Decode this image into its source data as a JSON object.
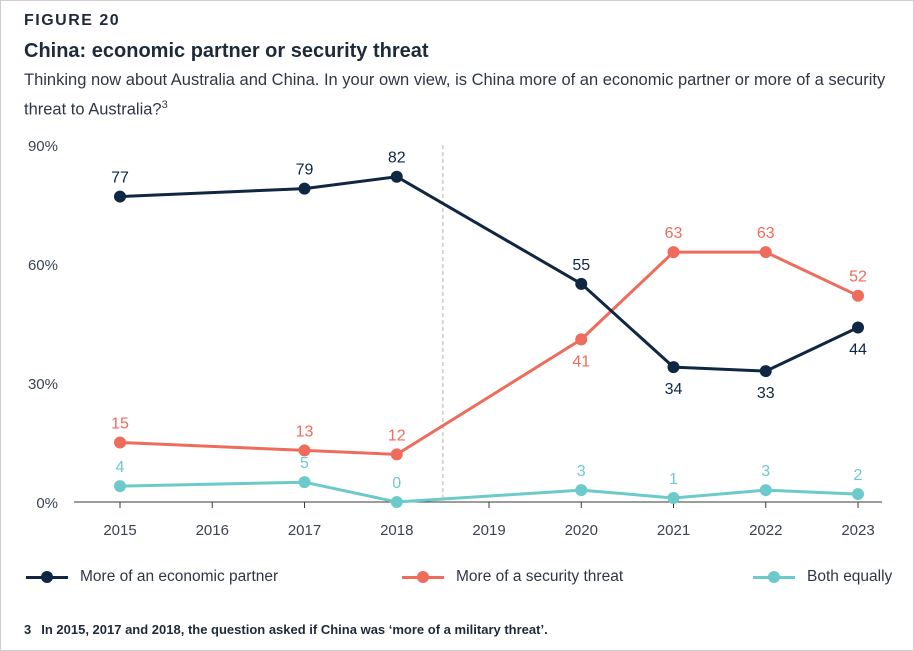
{
  "figure_label": "FIGURE 20",
  "title": "China: economic partner or security threat",
  "subtitle": "Thinking now about Australia and China. In your own view, is China more of an economic partner or more of a security threat to Australia?",
  "subtitle_footnote_ref": "3",
  "footnote": {
    "number": "3",
    "text": "In 2015, 2017 and 2018, the question asked if China was ‘more of a military threat’."
  },
  "chart_data": {
    "type": "line",
    "title": "China: economic partner or security threat",
    "xlabel": "",
    "ylabel": "",
    "x": [
      2015,
      2016,
      2017,
      2018,
      2019,
      2020,
      2021,
      2022,
      2023
    ],
    "x_tick_labels": [
      "2015",
      "2016",
      "2017",
      "2018",
      "2019",
      "2020",
      "2021",
      "2022",
      "2023"
    ],
    "y_ticks": [
      0,
      30,
      60,
      90
    ],
    "y_tick_labels": [
      "0%",
      "30%",
      "60%",
      "90%"
    ],
    "ylim": [
      0,
      90
    ],
    "divider_after_year": 2018.5,
    "series": [
      {
        "name": "More of an economic partner",
        "color": "#0f2742",
        "x": [
          2015,
          2017,
          2018,
          2020,
          2021,
          2022,
          2023
        ],
        "values": [
          77,
          79,
          82,
          55,
          34,
          33,
          44
        ],
        "labels": [
          "77",
          "79",
          "82",
          "55",
          "34",
          "33",
          "44"
        ],
        "label_pos": [
          "above",
          "above",
          "above",
          "above",
          "below",
          "below",
          "below"
        ]
      },
      {
        "name": "More of a security threat",
        "color": "#ef6b5b",
        "x": [
          2015,
          2017,
          2018,
          2020,
          2021,
          2022,
          2023
        ],
        "values": [
          15,
          13,
          12,
          41,
          63,
          63,
          52
        ],
        "labels": [
          "15",
          "13",
          "12",
          "41",
          "63",
          "63",
          "52"
        ],
        "label_pos": [
          "above",
          "above",
          "above",
          "below",
          "above",
          "above",
          "above"
        ]
      },
      {
        "name": "Both equally",
        "color": "#6dcacb",
        "x": [
          2015,
          2017,
          2018,
          2020,
          2021,
          2022,
          2023
        ],
        "values": [
          4,
          5,
          0,
          3,
          1,
          3,
          2
        ],
        "labels": [
          "4",
          "5",
          "0",
          "3",
          "1",
          "3",
          "2"
        ],
        "label_pos": [
          "above",
          "above",
          "above",
          "above",
          "above",
          "above",
          "above"
        ]
      }
    ],
    "legend_placement": "bottom",
    "grid": false
  }
}
